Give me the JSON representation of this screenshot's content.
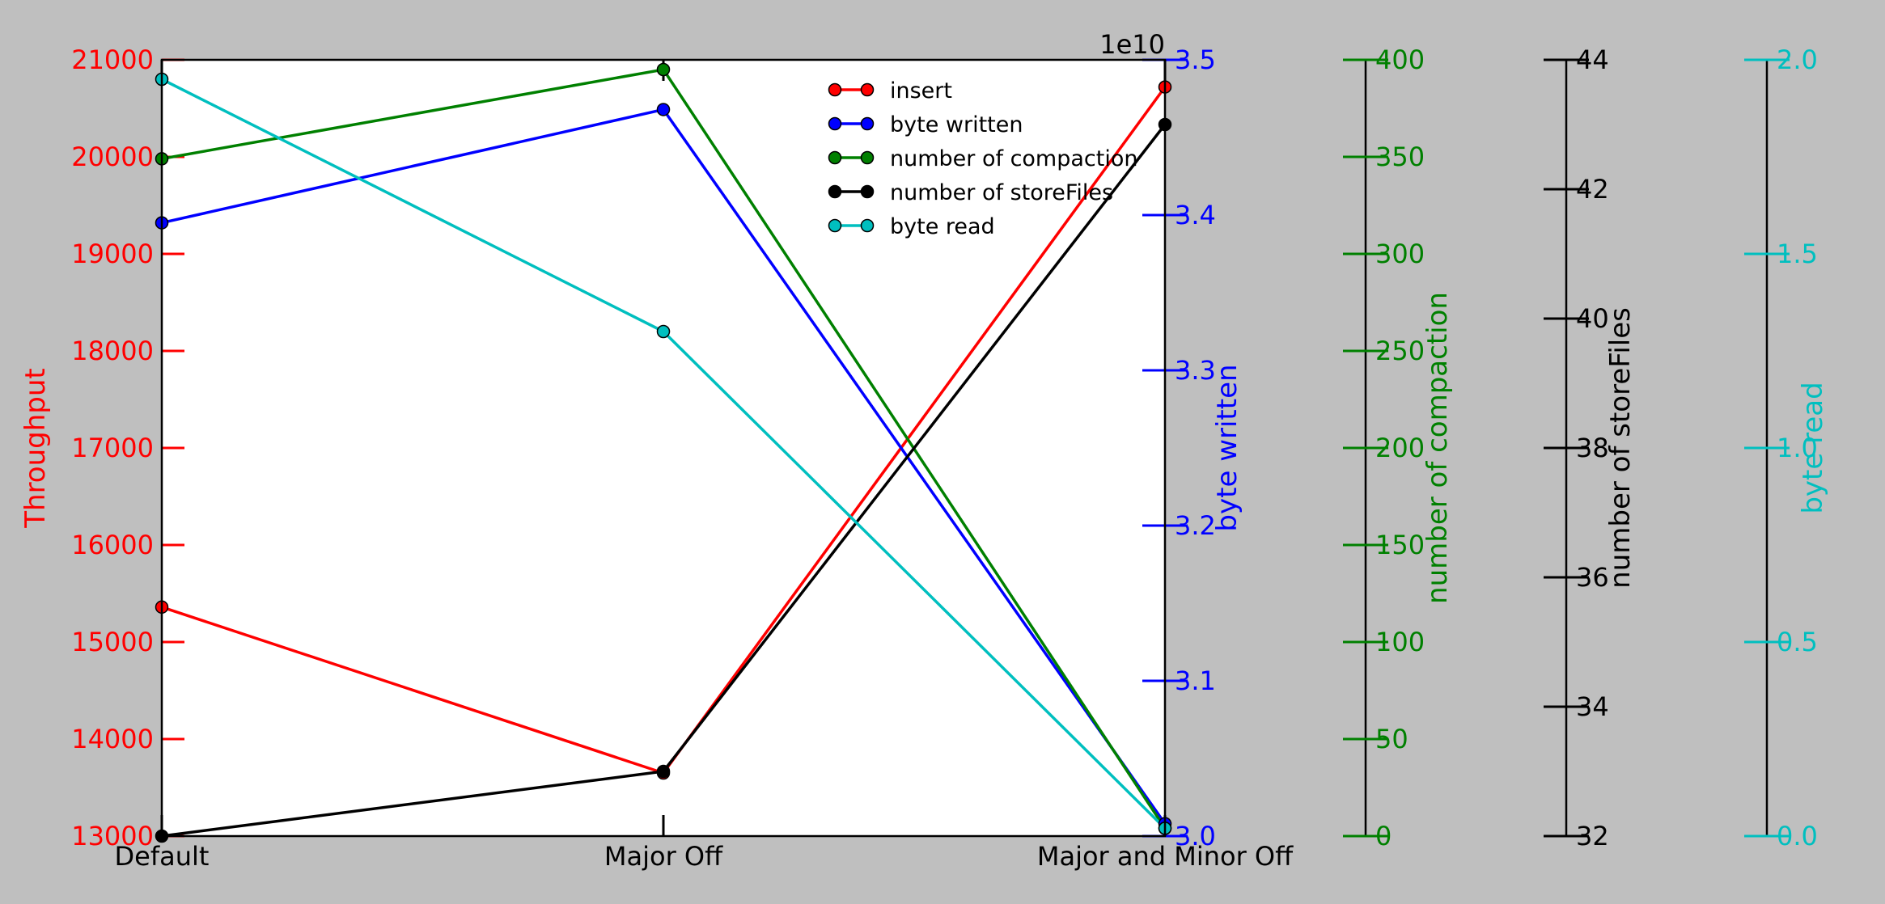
{
  "chart_data": {
    "type": "line",
    "categories": [
      "Default",
      "Major Off",
      "Major and Minor Off"
    ],
    "corner_label": "1e10",
    "axes": [
      {
        "id": "throughput",
        "label": "Throughput",
        "color": "#ff0000",
        "range": [
          13000,
          21000
        ],
        "ticks": [
          13000,
          14000,
          15000,
          16000,
          17000,
          18000,
          19000,
          20000,
          21000
        ]
      },
      {
        "id": "byte_written",
        "label": "byte written",
        "color": "#0000ff",
        "range": [
          3.0,
          3.5
        ],
        "ticks": [
          "3.0",
          "3.1",
          "3.2",
          "3.3",
          "3.4",
          "3.5"
        ]
      },
      {
        "id": "compaction",
        "label": "number of compaction",
        "color": "#008000",
        "range": [
          0,
          400
        ],
        "ticks": [
          0,
          50,
          100,
          150,
          200,
          250,
          300,
          350,
          400
        ]
      },
      {
        "id": "storefiles",
        "label": "number of storeFiles",
        "color": "#000000",
        "range": [
          32,
          44
        ],
        "ticks": [
          32,
          34,
          36,
          38,
          40,
          42,
          44
        ]
      },
      {
        "id": "byte_read",
        "label": "byte read",
        "color": "#00bfbf",
        "range": [
          0.0,
          2.0
        ],
        "ticks": [
          "0.0",
          "0.5",
          "1.0",
          "1.5",
          "2.0"
        ]
      }
    ],
    "series": [
      {
        "name": "insert",
        "axis": "throughput",
        "color": "#ff0000",
        "values": [
          15360,
          13650,
          20720
        ]
      },
      {
        "name": "byte written",
        "axis": "byte_written",
        "color": "#0000ff",
        "values": [
          3.395,
          3.468,
          3.008
        ]
      },
      {
        "name": "number of compaction",
        "axis": "compaction",
        "color": "#008000",
        "values": [
          349,
          395,
          4
        ]
      },
      {
        "name": "number of storeFiles",
        "axis": "storefiles",
        "color": "#000000",
        "values": [
          32,
          33,
          43
        ]
      },
      {
        "name": "byte read",
        "axis": "byte_read",
        "color": "#00bfbf",
        "values": [
          1.95,
          1.3,
          0.02
        ]
      }
    ],
    "legend_position": "top-right",
    "grid": false
  }
}
